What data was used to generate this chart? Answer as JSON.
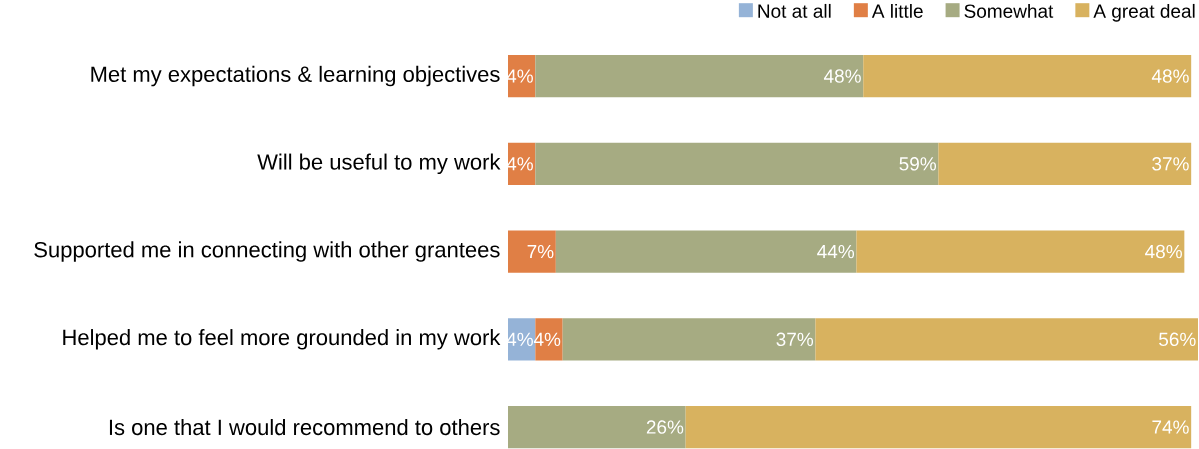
{
  "chart_data": {
    "type": "bar",
    "orientation": "horizontal",
    "stacked": true,
    "tick_labels": "y",
    "legend": "top right",
    "xlim": [
      0,
      101
    ],
    "categories": [
      "Met my expectations & learning objectives",
      "Will be useful to my work",
      "Supported me in connecting with other grantees",
      "Helped me to feel more grounded in my work",
      "Is one that I would recommend to others"
    ],
    "series": [
      {
        "name": "Not at all",
        "color": "#95b3d7",
        "values": [
          null,
          null,
          null,
          4,
          null
        ],
        "value_labels": [
          null,
          null,
          null,
          "4%",
          null
        ]
      },
      {
        "name": "A little",
        "color": "#e07f45",
        "values": [
          4,
          4,
          7,
          4,
          null
        ],
        "value_labels": [
          "4%",
          "4%",
          "7%",
          "4%",
          null
        ]
      },
      {
        "name": "Somewhat",
        "color": "#a6ab82",
        "values": [
          48,
          59,
          44,
          37,
          26
        ],
        "value_labels": [
          "48%",
          "59%",
          "44%",
          "37%",
          "26%"
        ]
      },
      {
        "name": "A great deal",
        "color": "#d8b25f",
        "values": [
          48,
          37,
          48,
          56,
          74
        ],
        "value_labels": [
          "48%",
          "37%",
          "48%",
          "56%",
          "74%"
        ]
      }
    ]
  }
}
